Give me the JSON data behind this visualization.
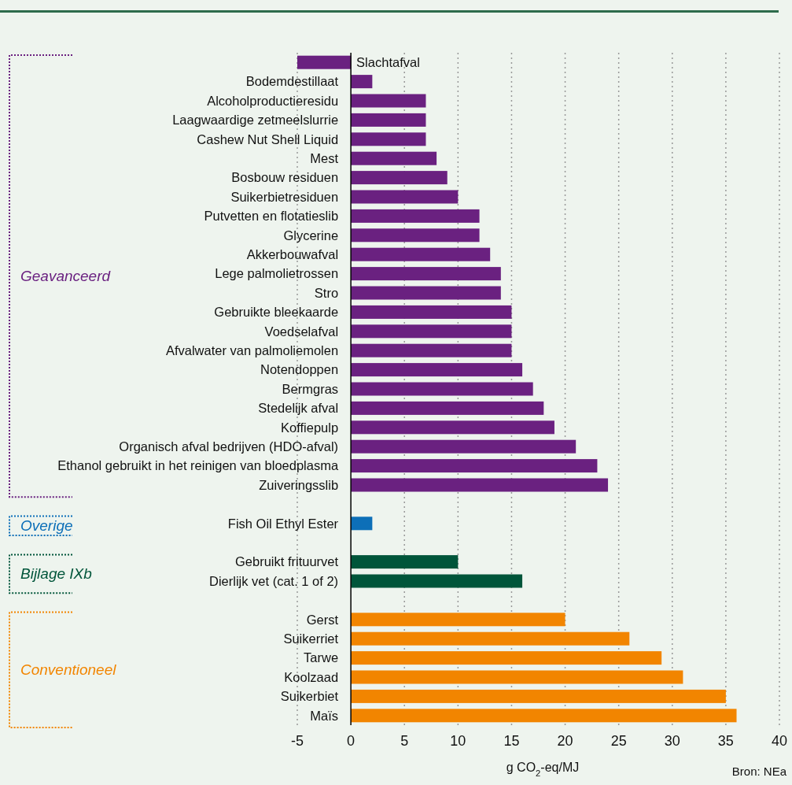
{
  "chart_data": {
    "type": "bar",
    "orientation": "horizontal",
    "categories": [
      "Slachtafval",
      "Bodemdestillaat",
      "Alcoholproductieresidu",
      "Laagwaardige zetmeelslurrie",
      "Cashew Nut Shell Liquid",
      "Mest",
      "Bosbouw residuen",
      "Suikerbietresiduen",
      "Putvetten en flotatieslib",
      "Glycerine",
      "Akkerbouwafval",
      "Lege palmolietrossen",
      "Stro",
      "Gebruikte bleekaarde",
      "Voedselafval",
      "Afvalwater van palmoliemolen",
      "Notendoppen",
      "Bermgras",
      "Stedelijk afval",
      "Koffiepulp",
      "Organisch afval bedrijven (HDO-afval)",
      "Ethanol gebruikt in het reinigen van bloedplasma",
      "Zuiveringsslib",
      null,
      "Fish Oil Ethyl Ester",
      null,
      "Gebruikt frituurvet",
      "Dierlijk vet (cat. 1 of 2)",
      null,
      "Gerst",
      "Suikerriet",
      "Tarwe",
      "Koolzaad",
      "Suikerbiet",
      "Maïs"
    ],
    "series": [
      {
        "name": "Geavanceerd",
        "color": "#6a2180",
        "values": [
          -5,
          2,
          7,
          7,
          7,
          8,
          9,
          10,
          12,
          12,
          13,
          14,
          14,
          15,
          15,
          15,
          16,
          17,
          18,
          19,
          21,
          23,
          24,
          null,
          null,
          null,
          null,
          null,
          null,
          null,
          null,
          null,
          null,
          null,
          null
        ]
      },
      {
        "name": "Overige",
        "color": "#0d6fb8",
        "values": [
          null,
          null,
          null,
          null,
          null,
          null,
          null,
          null,
          null,
          null,
          null,
          null,
          null,
          null,
          null,
          null,
          null,
          null,
          null,
          null,
          null,
          null,
          null,
          null,
          2,
          null,
          null,
          null,
          null,
          null,
          null,
          null,
          null,
          null,
          null
        ]
      },
      {
        "name": "Bijlage IXb",
        "color": "#00553a",
        "values": [
          null,
          null,
          null,
          null,
          null,
          null,
          null,
          null,
          null,
          null,
          null,
          null,
          null,
          null,
          null,
          null,
          null,
          null,
          null,
          null,
          null,
          null,
          null,
          null,
          null,
          null,
          10,
          16,
          null,
          null,
          null,
          null,
          null,
          null,
          null
        ]
      },
      {
        "name": "Conventioneel",
        "color": "#f28500",
        "values": [
          null,
          null,
          null,
          null,
          null,
          null,
          null,
          null,
          null,
          null,
          null,
          null,
          null,
          null,
          null,
          null,
          null,
          null,
          null,
          null,
          null,
          null,
          null,
          null,
          null,
          null,
          null,
          null,
          null,
          20,
          26,
          29,
          31,
          35,
          36
        ]
      }
    ],
    "xlim": [
      -5,
      40
    ],
    "xticks": [
      -5,
      0,
      5,
      10,
      15,
      20,
      25,
      30,
      35,
      40
    ],
    "grid": "x",
    "xlabel": "g CO$_{2}$-eq/MJ",
    "annotations": [
      "Bron: NEa"
    ]
  }
}
